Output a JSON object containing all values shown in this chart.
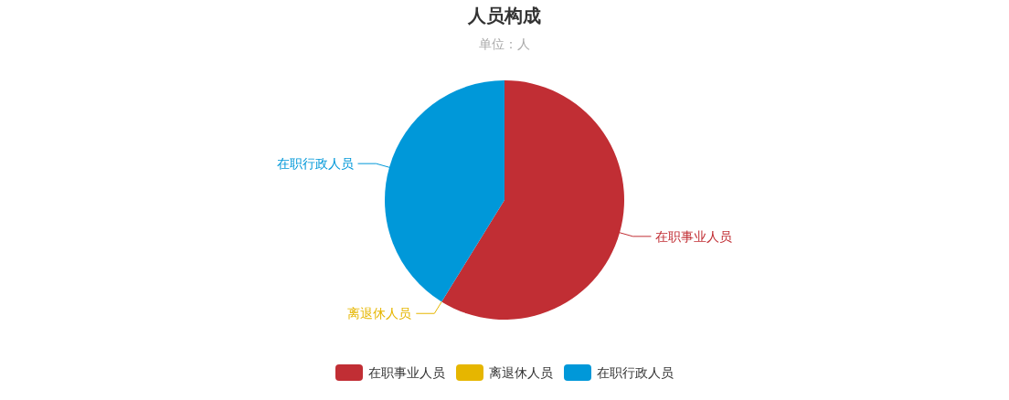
{
  "chart_data": {
    "type": "pie",
    "title": "人员构成",
    "subtitle": "单位：人",
    "categories": [
      "在职事业人员",
      "离退休人员",
      "在职行政人员"
    ],
    "values": [
      58.8,
      0,
      41.2
    ],
    "colors": [
      "#c12e34",
      "#e6b600",
      "#0098d9"
    ],
    "legend": "bottom"
  }
}
